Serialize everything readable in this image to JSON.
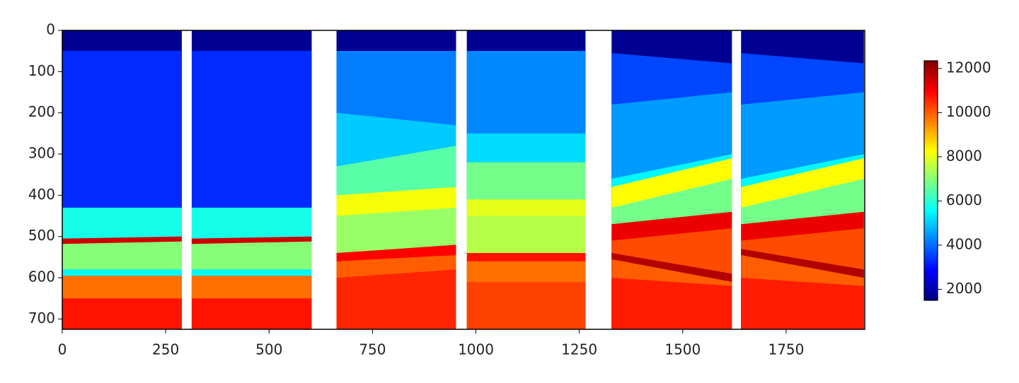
{
  "chart_data": {
    "type": "heatmap",
    "colormap": "jet",
    "xlim": [
      0,
      1940
    ],
    "ylim": [
      725,
      0
    ],
    "xticks": [
      0,
      250,
      500,
      750,
      1000,
      1250,
      1500,
      1750
    ],
    "yticks": [
      0,
      100,
      200,
      300,
      400,
      500,
      600,
      700
    ],
    "colorbar": {
      "clim": [
        1500,
        12350
      ],
      "ticks": [
        2000,
        4000,
        6000,
        8000,
        10000,
        12000
      ]
    },
    "panels": [
      {
        "x": [
          0,
          289
        ],
        "layers": [
          {
            "top": [
              0,
              0
            ],
            "v": 1700
          },
          {
            "top": [
              50,
              50
            ],
            "v": 3300
          },
          {
            "top": [
              430,
              430
            ],
            "v": 5800
          },
          {
            "top": [
              505,
              500
            ],
            "v": 11500
          },
          {
            "top": [
              518,
              512
            ],
            "v": 7000
          },
          {
            "top": [
              580,
              580
            ],
            "v": 5500
          },
          {
            "top": [
              595,
              595
            ],
            "v": 9800
          },
          {
            "top": [
              650,
              650
            ],
            "v": 10800
          }
        ]
      },
      {
        "x": [
          313,
          603
        ],
        "layers": [
          {
            "top": [
              0,
              0
            ],
            "v": 1700
          },
          {
            "top": [
              50,
              50
            ],
            "v": 3300
          },
          {
            "top": [
              430,
              430
            ],
            "v": 5800
          },
          {
            "top": [
              505,
              500
            ],
            "v": 11500
          },
          {
            "top": [
              518,
              512
            ],
            "v": 7000
          },
          {
            "top": [
              580,
              580
            ],
            "v": 5500
          },
          {
            "top": [
              595,
              595
            ],
            "v": 9800
          },
          {
            "top": [
              650,
              650
            ],
            "v": 10800
          }
        ]
      },
      {
        "x": [
          663,
          952
        ],
        "layers": [
          {
            "top": [
              0,
              0
            ],
            "v": 1700
          },
          {
            "top": [
              50,
              50
            ],
            "v": 4200
          },
          {
            "top": [
              200,
              230
            ],
            "v": 5000
          },
          {
            "top": [
              330,
              280
            ],
            "v": 6500
          },
          {
            "top": [
              400,
              380
            ],
            "v": 8200
          },
          {
            "top": [
              450,
              430
            ],
            "v": 7200
          },
          {
            "top": [
              540,
              520
            ],
            "v": 11000
          },
          {
            "top": [
              560,
              545
            ],
            "v": 10000
          },
          {
            "top": [
              600,
              580
            ],
            "v": 10600
          }
        ]
      },
      {
        "x": [
          978,
          1265
        ],
        "layers": [
          {
            "top": [
              0,
              0
            ],
            "v": 1700
          },
          {
            "top": [
              50,
              50
            ],
            "v": 4300
          },
          {
            "top": [
              250,
              250
            ],
            "v": 5200
          },
          {
            "top": [
              320,
              320
            ],
            "v": 6800
          },
          {
            "top": [
              410,
              410
            ],
            "v": 8000
          },
          {
            "top": [
              450,
              450
            ],
            "v": 7500
          },
          {
            "top": [
              540,
              540
            ],
            "v": 10800
          },
          {
            "top": [
              560,
              560
            ],
            "v": 9800
          },
          {
            "top": [
              610,
              610
            ],
            "v": 10300
          }
        ]
      },
      {
        "x": [
          1328,
          1619
        ],
        "layers": [
          {
            "top": [
              0,
              0
            ],
            "v": 1700
          },
          {
            "top": [
              55,
              80
            ],
            "v": 3600
          },
          {
            "top": [
              180,
              150
            ],
            "v": 4500
          },
          {
            "top": [
              360,
              300
            ],
            "v": 5500
          },
          {
            "top": [
              380,
              310
            ],
            "v": 8300
          },
          {
            "top": [
              430,
              360
            ],
            "v": 6800
          },
          {
            "top": [
              470,
              440
            ],
            "v": 11200
          },
          {
            "top": [
              510,
              480
            ],
            "v": 10200
          },
          {
            "top": [
              540,
              590
            ],
            "v": 11800
          },
          {
            "top": [
              555,
              610
            ],
            "v": 10000
          },
          {
            "top": [
              600,
              620
            ],
            "v": 10700
          }
        ]
      },
      {
        "x": [
          1641,
          1938
        ],
        "layers": [
          {
            "top": [
              0,
              0
            ],
            "v": 1700
          },
          {
            "top": [
              55,
              80
            ],
            "v": 3600
          },
          {
            "top": [
              180,
              150
            ],
            "v": 4500
          },
          {
            "top": [
              360,
              300
            ],
            "v": 5500
          },
          {
            "top": [
              380,
              310
            ],
            "v": 8300
          },
          {
            "top": [
              430,
              360
            ],
            "v": 6800
          },
          {
            "top": [
              470,
              440
            ],
            "v": 11200
          },
          {
            "top": [
              510,
              480
            ],
            "v": 10200
          },
          {
            "top": [
              530,
              580
            ],
            "v": 11800
          },
          {
            "top": [
              545,
              600
            ],
            "v": 10000
          },
          {
            "top": [
              600,
              620
            ],
            "v": 10700
          }
        ]
      }
    ]
  }
}
